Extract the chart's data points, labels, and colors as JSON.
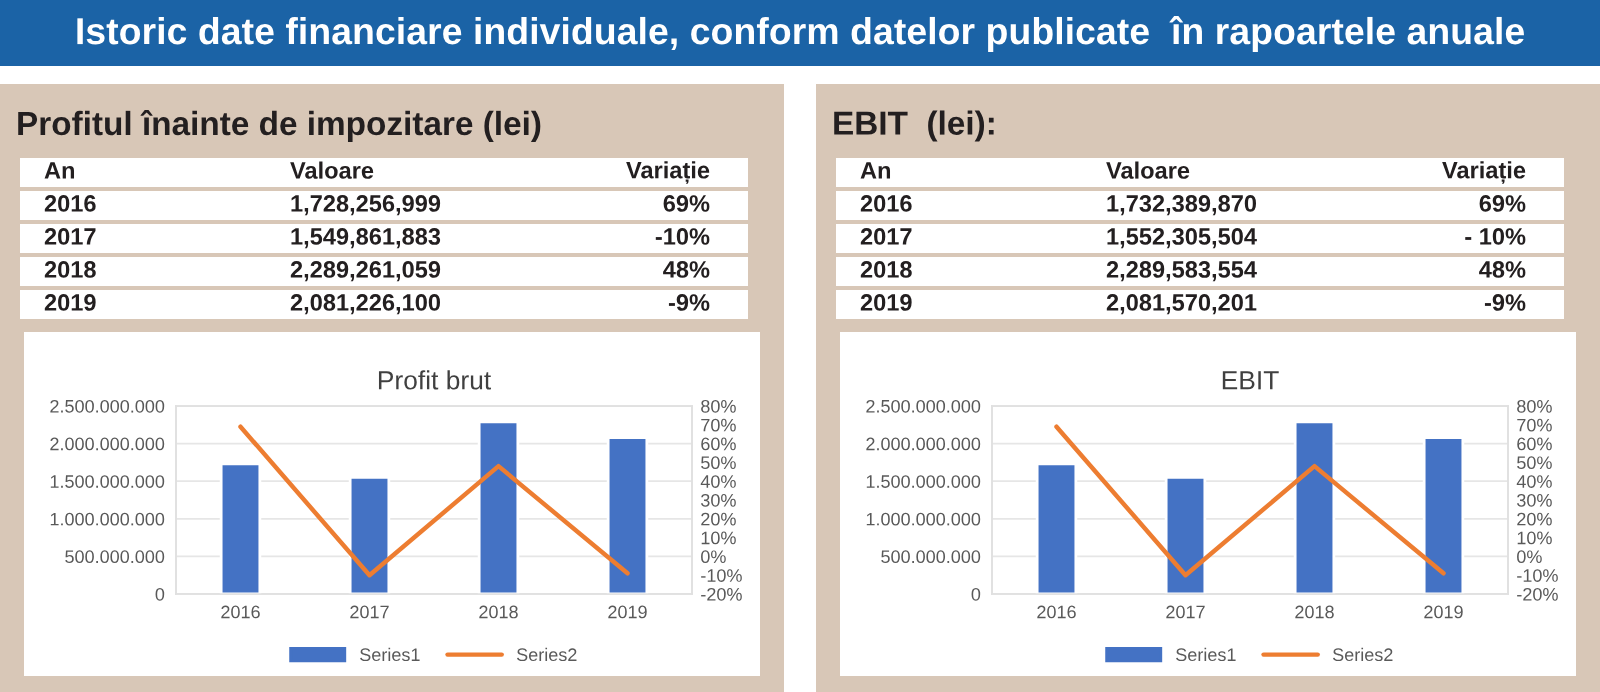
{
  "chart_data": [
    {
      "type": "bar",
      "title": "Profit brut",
      "categories": [
        "2016",
        "2017",
        "2018",
        "2019"
      ],
      "series": [
        {
          "name": "Series1",
          "color": "#4472c4",
          "values": [
            1730000000,
            1550000000,
            2290000000,
            2080000000
          ]
        },
        {
          "name": "Series2",
          "type": "line",
          "axis": "y2",
          "color": "#ed7d31",
          "values": [
            69,
            -10,
            48,
            -9
          ]
        }
      ],
      "ylim": [
        0,
        2500000000
      ],
      "yticks": [
        {
          "value": 0,
          "label": "0"
        },
        {
          "value": 500000000,
          "label": "500.000.000"
        },
        {
          "value": 1000000000,
          "label": "1.000.000.000"
        },
        {
          "value": 1500000000,
          "label": "1.500.000.000"
        },
        {
          "value": 2000000000,
          "label": "2.000.000.000"
        },
        {
          "value": 2500000000,
          "label": "2.500.000.000"
        }
      ],
      "y2lim": [
        -20,
        80
      ],
      "y2ticks": [
        {
          "value": -20,
          "label": "-20%"
        },
        {
          "value": -10,
          "label": "-10%"
        },
        {
          "value": 0,
          "label": "0%"
        },
        {
          "value": 10,
          "label": "10%"
        },
        {
          "value": 20,
          "label": "20%"
        },
        {
          "value": 30,
          "label": "30%"
        },
        {
          "value": 40,
          "label": "40%"
        },
        {
          "value": 50,
          "label": "50%"
        },
        {
          "value": 60,
          "label": "60%"
        },
        {
          "value": 70,
          "label": "70%"
        },
        {
          "value": 80,
          "label": "80%"
        }
      ],
      "grid": "y",
      "legend": "bottom",
      "annotations": [
        "Istoric date financiare individuale, conform datelor publicate  în rapoartele anuale",
        "Profitul înainte de impozitare (lei)",
        "An",
        "Valoare",
        "Variație",
        "2016",
        "1,728,256,999",
        "69%",
        "2017",
        "1,549,861,883",
        "-10%",
        "2018",
        "2,289,261,059",
        "48%",
        "2019",
        "2,081,226,100",
        "-9%"
      ]
    },
    {
      "type": "bar",
      "title": "EBIT",
      "categories": [
        "2016",
        "2017",
        "2018",
        "2019"
      ],
      "series": [
        {
          "name": "Series1",
          "color": "#4472c4",
          "values": [
            1730000000,
            1550000000,
            2290000000,
            2080000000
          ]
        },
        {
          "name": "Series2",
          "type": "line",
          "axis": "y2",
          "color": "#ed7d31",
          "values": [
            69,
            -10,
            48,
            -9
          ]
        }
      ],
      "ylim": [
        0,
        2500000000
      ],
      "yticks": [
        {
          "value": 0,
          "label": "0"
        },
        {
          "value": 500000000,
          "label": "500.000.000"
        },
        {
          "value": 1000000000,
          "label": "1.000.000.000"
        },
        {
          "value": 1500000000,
          "label": "1.500.000.000"
        },
        {
          "value": 2000000000,
          "label": "2.000.000.000"
        },
        {
          "value": 2500000000,
          "label": "2.500.000.000"
        }
      ],
      "y2lim": [
        -20,
        80
      ],
      "y2ticks": [
        {
          "value": -20,
          "label": "-20%"
        },
        {
          "value": -10,
          "label": "-10%"
        },
        {
          "value": 0,
          "label": "0%"
        },
        {
          "value": 10,
          "label": "10%"
        },
        {
          "value": 20,
          "label": "20%"
        },
        {
          "value": 30,
          "label": "30%"
        },
        {
          "value": 40,
          "label": "40%"
        },
        {
          "value": 50,
          "label": "50%"
        },
        {
          "value": 60,
          "label": "60%"
        },
        {
          "value": 70,
          "label": "70%"
        },
        {
          "value": 80,
          "label": "80%"
        }
      ],
      "grid": "y",
      "legend": "bottom",
      "annotations": [
        "EBIT  (lei):",
        "An",
        "Valoare",
        "Variație",
        "2016",
        "1,732,389,870",
        "69%",
        "2017",
        "1,552,305,504",
        "- 10%",
        "2018",
        "2,289,583,554",
        "48%",
        "2019",
        "2,081,570,201",
        "-9%"
      ]
    }
  ]
}
